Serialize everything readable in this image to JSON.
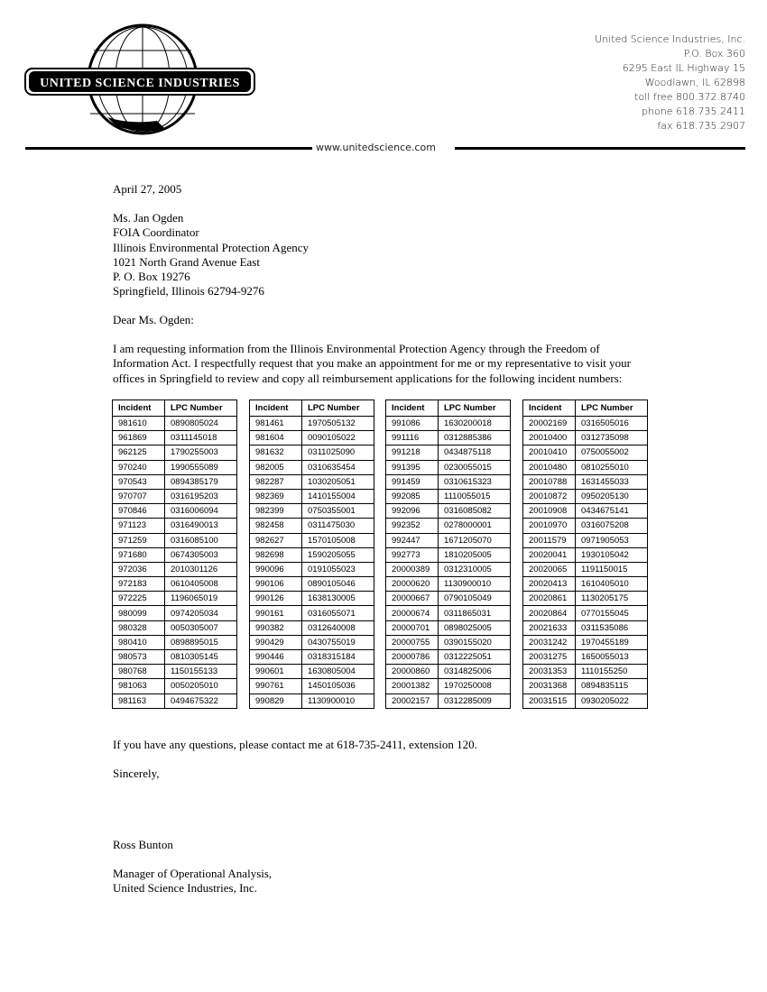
{
  "letterhead": {
    "logo_text": "UNITED SCIENCE INDUSTRIES",
    "address_lines": [
      "United Science Industries, Inc.",
      "P.O. Box 360",
      "6295 East IL Highway 15",
      "Woodlawn, IL 62898",
      "toll free 800.372.8740",
      "phone 618.735.2411",
      "fax 618.735.2907"
    ],
    "website": "www.unitedscience.com"
  },
  "date": "April 27, 2005",
  "recipient": [
    "Ms. Jan Ogden",
    "FOIA Coordinator",
    "Illinois Environmental Protection Agency",
    "1021 North Grand Avenue East",
    "P. O. Box 19276",
    "Springfield, Illinois  62794-9276"
  ],
  "salutation": "Dear Ms. Ogden:",
  "paragraph": [
    "I am requesting information from the Illinois Environmental Protection Agency through the Freedom of",
    "Information Act.  I respectfully request that you make an appointment for me or my representative to visit your",
    "offices in Springfield to review and copy all reimbursement applications for the following incident numbers:"
  ],
  "table_headers": [
    "Incident",
    "LPC Number"
  ],
  "tables": [
    [
      [
        "981610",
        "0890805024"
      ],
      [
        "961869",
        "0311145018"
      ],
      [
        "962125",
        "1790255003"
      ],
      [
        "970240",
        "1990555089"
      ],
      [
        "970543",
        "0894385179"
      ],
      [
        "970707",
        "0316195203"
      ],
      [
        "970846",
        "0316006094"
      ],
      [
        "971123",
        "0316490013"
      ],
      [
        "971259",
        "0316085100"
      ],
      [
        "971680",
        "0674305003"
      ],
      [
        "972036",
        "2010301126"
      ],
      [
        "972183",
        "0610405008"
      ],
      [
        "972225",
        "1196065019"
      ],
      [
        "980099",
        "0974205034"
      ],
      [
        "980328",
        "0050305007"
      ],
      [
        "980410",
        "0898895015"
      ],
      [
        "980573",
        "0810305145"
      ],
      [
        "980768",
        "1150155133"
      ],
      [
        "981063",
        "0050205010"
      ],
      [
        "981163",
        "0494675322"
      ]
    ],
    [
      [
        "981461",
        "1970505132"
      ],
      [
        "981604",
        "0090105022"
      ],
      [
        "981632",
        "0311025090"
      ],
      [
        "982005",
        "0310635454"
      ],
      [
        "982287",
        "1030205051"
      ],
      [
        "982369",
        "1410155004"
      ],
      [
        "982399",
        "0750355001"
      ],
      [
        "982458",
        "0311475030"
      ],
      [
        "982627",
        "1570105008"
      ],
      [
        "982698",
        "1590205055"
      ],
      [
        "990096",
        "0191055023"
      ],
      [
        "990106",
        "0890105046"
      ],
      [
        "990126",
        "1638130005"
      ],
      [
        "990161",
        "0316055071"
      ],
      [
        "990382",
        "0312640008"
      ],
      [
        "990429",
        "0430755019"
      ],
      [
        "990446",
        "0318315184"
      ],
      [
        "990601",
        "1630805004"
      ],
      [
        "990761",
        "1450105036"
      ],
      [
        "990829",
        "1130900010"
      ]
    ],
    [
      [
        "991086",
        "1630200018"
      ],
      [
        "991116",
        "0312885386"
      ],
      [
        "991218",
        "0434875118"
      ],
      [
        "991395",
        "0230055015"
      ],
      [
        "991459",
        "0310615323"
      ],
      [
        "992085",
        "1110055015"
      ],
      [
        "992096",
        "0316085082"
      ],
      [
        "992352",
        "0278000001"
      ],
      [
        "992447",
        "1671205070"
      ],
      [
        "992773",
        "1810205005"
      ],
      [
        "20000389",
        "0312310005"
      ],
      [
        "20000620",
        "1130900010"
      ],
      [
        "20000667",
        "0790105049"
      ],
      [
        "20000674",
        "0311865031"
      ],
      [
        "20000701",
        "0898025005"
      ],
      [
        "20000755",
        "0390155020"
      ],
      [
        "20000786",
        "0312225051"
      ],
      [
        "20000860",
        "0314825006"
      ],
      [
        "20001382",
        "1970250008"
      ],
      [
        "20002157",
        "0312285009"
      ]
    ],
    [
      [
        "20002169",
        "0316505016"
      ],
      [
        "20010400",
        "0312735098"
      ],
      [
        "20010410",
        "0750055002"
      ],
      [
        "20010480",
        "0810255010"
      ],
      [
        "20010788",
        "1631455033"
      ],
      [
        "20010872",
        "0950205130"
      ],
      [
        "20010908",
        "0434675141"
      ],
      [
        "20010970",
        "0316075208"
      ],
      [
        "20011579",
        "0971905053"
      ],
      [
        "20020041",
        "1930105042"
      ],
      [
        "20020065",
        "1191150015"
      ],
      [
        "20020413",
        "1610405010"
      ],
      [
        "20020861",
        "1130205175"
      ],
      [
        "20020864",
        "0770155045"
      ],
      [
        "20021633",
        "0311535086"
      ],
      [
        "20031242",
        "1970455189"
      ],
      [
        "20031275",
        "1650055013"
      ],
      [
        "20031353",
        "1110155250"
      ],
      [
        "20031368",
        "0894835115"
      ],
      [
        "20031515",
        "0930205022"
      ]
    ]
  ],
  "closing_question": "If you have any questions, please contact me at 618-735-2411, extension 120.",
  "closing": "Sincerely,",
  "signer_name": "Ross Bunton",
  "signer_title": [
    "Manager of Operational Analysis,",
    "United Science Industries, Inc."
  ]
}
